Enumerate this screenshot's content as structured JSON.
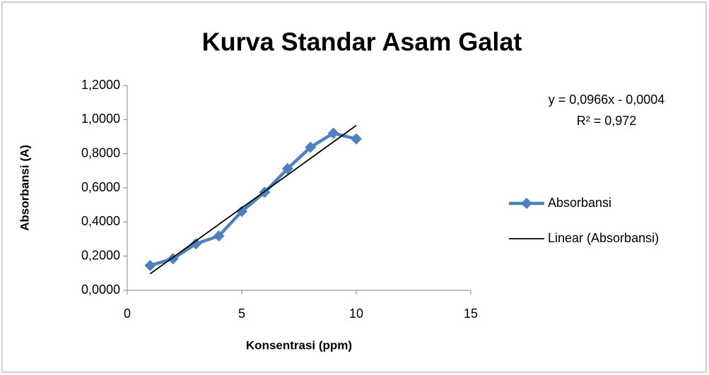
{
  "chart_data": {
    "type": "scatter",
    "title": "Kurva Standar Asam Galat",
    "xlabel": "Konsentrasi (ppm)",
    "ylabel": "Absorbansi (A)",
    "xlim": [
      0,
      15
    ],
    "xticks": [
      0,
      5,
      10,
      15
    ],
    "ylim": [
      0,
      1.2
    ],
    "yticks": [
      {
        "value": 0,
        "label": "0,0000"
      },
      {
        "value": 0.2,
        "label": "0,2000"
      },
      {
        "value": 0.4,
        "label": "0,4000"
      },
      {
        "value": 0.6,
        "label": "0,6000"
      },
      {
        "value": 0.8,
        "label": "0,8000"
      },
      {
        "value": 1.0,
        "label": "1,0000"
      },
      {
        "value": 1.2,
        "label": "1,2000"
      }
    ],
    "grid": false,
    "legend": "right",
    "series": [
      {
        "name": "Absorbansi",
        "color": "#4f81bd",
        "x": [
          1,
          2,
          3,
          4,
          5,
          6,
          7,
          8,
          9,
          10
        ],
        "values": [
          0.145,
          0.185,
          0.272,
          0.318,
          0.462,
          0.574,
          0.712,
          0.838,
          0.92,
          0.887
        ]
      },
      {
        "name": "Linear (Absorbansi)",
        "color": "#000000",
        "x": [
          1,
          10
        ],
        "values": [
          0.0962,
          0.9656
        ]
      }
    ],
    "annotations": [
      "y = 0,0966x - 0,0004",
      "R² = 0,972"
    ]
  }
}
